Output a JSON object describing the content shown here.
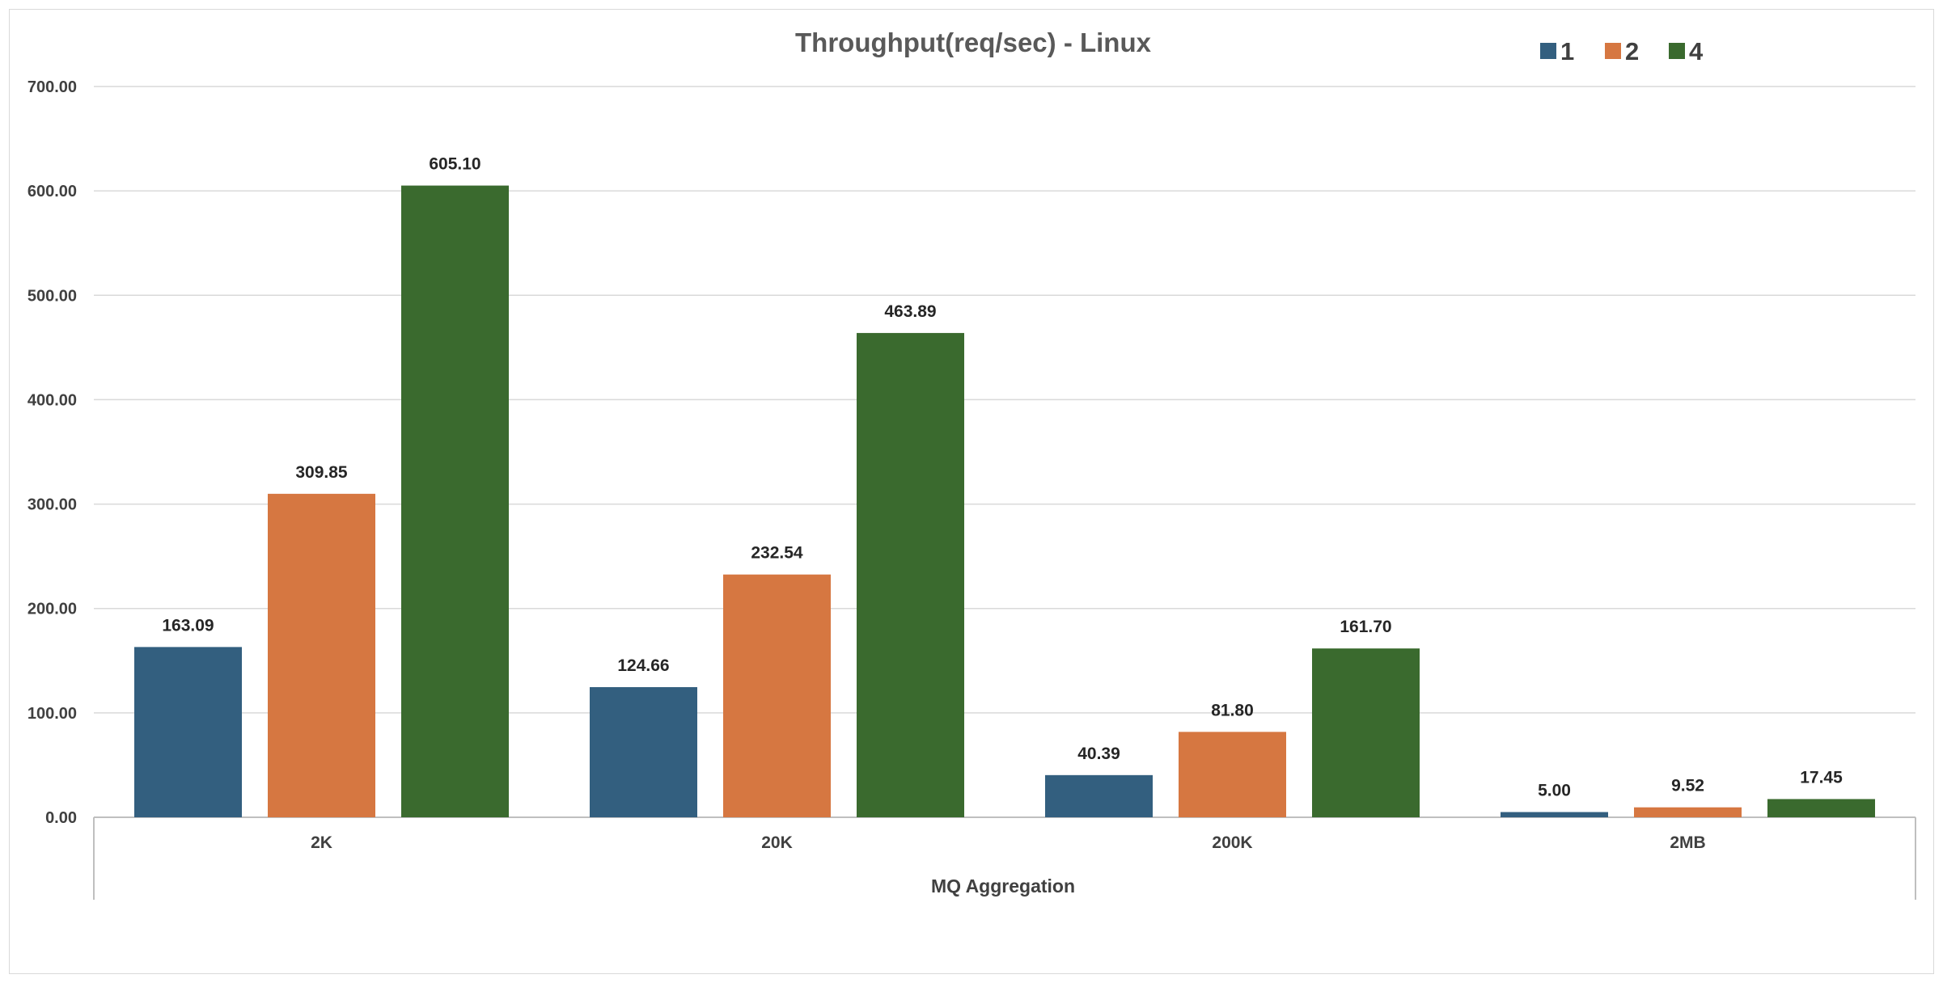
{
  "chart_data": {
    "type": "bar",
    "title": "Throughput(req/sec) - Linux",
    "xlabel": "MQ Aggregation",
    "ylabel": "",
    "ylim": [
      0,
      700
    ],
    "yticks": [
      "0.00",
      "100.00",
      "200.00",
      "300.00",
      "400.00",
      "500.00",
      "600.00",
      "700.00"
    ],
    "categories": [
      "2K",
      "20K",
      "200K",
      "2MB"
    ],
    "series": [
      {
        "name": "1",
        "color": "#335f7f",
        "values": [
          163.09,
          124.66,
          40.39,
          5.0
        ],
        "labels": [
          "163.09",
          "124.66",
          "40.39",
          "5.00"
        ]
      },
      {
        "name": "2",
        "color": "#d67741",
        "values": [
          309.85,
          232.54,
          81.8,
          9.52
        ],
        "labels": [
          "309.85",
          "232.54",
          "81.80",
          "9.52"
        ]
      },
      {
        "name": "4",
        "color": "#3a6a2e",
        "values": [
          605.1,
          463.89,
          161.7,
          17.45
        ],
        "labels": [
          "605.10",
          "463.89",
          "161.70",
          "17.45"
        ]
      }
    ],
    "grid": true,
    "legend_position": "top-right"
  }
}
